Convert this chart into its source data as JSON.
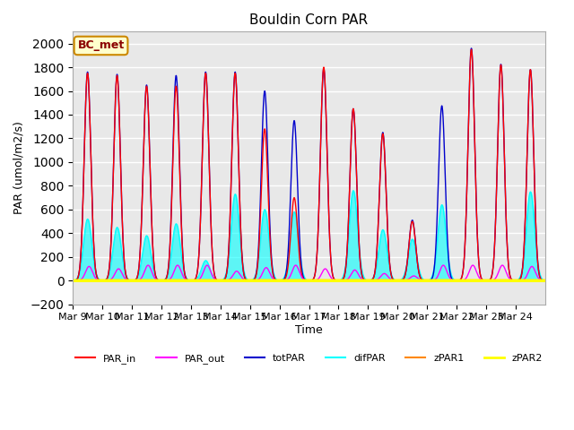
{
  "title": "Bouldin Corn PAR",
  "ylabel": "PAR (umol/m2/s)",
  "xlabel": "Time",
  "annotation": "BC_met",
  "ylim": [
    -200,
    2100
  ],
  "yticks": [
    -200,
    0,
    200,
    400,
    600,
    800,
    1000,
    1200,
    1400,
    1600,
    1800,
    2000
  ],
  "date_labels": [
    "Mar 9",
    "Mar 10",
    "Mar 11",
    "Mar 12",
    "Mar 13",
    "Mar 14",
    "Mar 15",
    "Mar 16",
    "Mar 17",
    "Mar 18",
    "Mar 19",
    "Mar 20",
    "Mar 21",
    "Mar 22",
    "Mar 23",
    "Mar 24"
  ],
  "n_days": 16,
  "colors": {
    "PAR_in": "#ff0000",
    "PAR_out": "#ff00ff",
    "totPAR": "#0000cc",
    "difPAR": "#00ffff",
    "zPAR1": "#ff8800",
    "zPAR2": "#ffff00"
  },
  "background_color": "#e8e8e8",
  "grid_color": "#ffffff",
  "day_peaks": {
    "PAR_in": [
      1750,
      1730,
      1640,
      1640,
      1750,
      1750,
      1280,
      700,
      1800,
      1450,
      1240,
      500,
      0,
      1950,
      1820,
      1780
    ],
    "totPAR": [
      1760,
      1740,
      1650,
      1730,
      1760,
      1760,
      1600,
      1350,
      1790,
      1450,
      1250,
      510,
      1475,
      1960,
      1825,
      1780
    ],
    "difPAR": [
      520,
      450,
      380,
      480,
      170,
      730,
      600,
      580,
      0,
      760,
      430,
      350,
      640,
      0,
      0,
      750
    ],
    "PAR_out": [
      120,
      100,
      130,
      130,
      130,
      80,
      110,
      130,
      100,
      90,
      60,
      40,
      130,
      130,
      130,
      120
    ]
  }
}
